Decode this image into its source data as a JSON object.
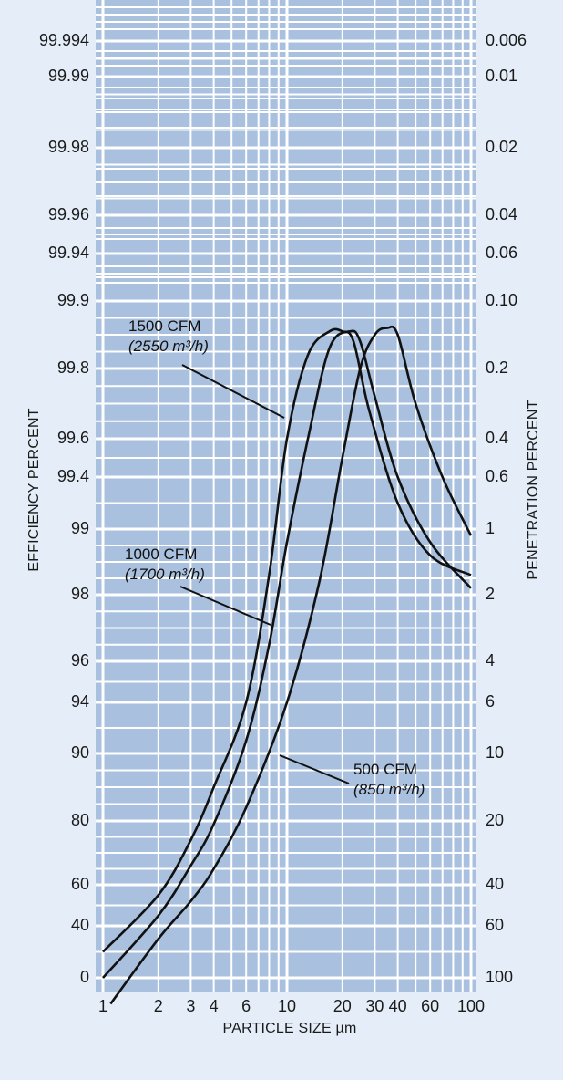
{
  "chart_data": {
    "type": "line",
    "title": "",
    "xlabel": "PARTICLE SIZE µm",
    "ylabel_left": "EFFICIENCY PERCENT",
    "ylabel_right": "PENETRATION PERCENT",
    "x_scale": "log",
    "xlim": [
      1,
      100
    ],
    "x_ticks": [
      1,
      2,
      3,
      4,
      6,
      10,
      20,
      30,
      40,
      60,
      100
    ],
    "x_tick_labels": [
      "1",
      "2",
      "3",
      "4",
      "6",
      "10",
      "20",
      "30",
      "40",
      "60",
      "100"
    ],
    "left_ticks": [
      "99.994",
      "99.99",
      "99.98",
      "99.96",
      "99.94",
      "99.9",
      "99.8",
      "99.6",
      "99.4",
      "99",
      "98",
      "96",
      "94",
      "90",
      "80",
      "60",
      "40",
      "0"
    ],
    "right_ticks": [
      "0.006",
      "0.01",
      "0.02",
      "0.04",
      "0.06",
      "0.10",
      "0.2",
      "0.4",
      "0.6",
      "1",
      "2",
      "4",
      "6",
      "10",
      "20",
      "40",
      "60",
      "100"
    ],
    "grid": true,
    "background_color": "#a9c0de",
    "grid_color": "#ffffff",
    "line_color": "#111111",
    "series": [
      {
        "name": "1500 CFM",
        "name_metric": "(2550 m³/h)",
        "points": [
          [
            1,
            20
          ],
          [
            2,
            55
          ],
          [
            3,
            74
          ],
          [
            4,
            85
          ],
          [
            6,
            94
          ],
          [
            8,
            98.3
          ],
          [
            10,
            99.6
          ],
          [
            13,
            99.82
          ],
          [
            17,
            99.855
          ],
          [
            20,
            99.855
          ],
          [
            23,
            99.84
          ],
          [
            28,
            99.68
          ],
          [
            40,
            99.2
          ],
          [
            60,
            98.6
          ],
          [
            100,
            98.3
          ]
        ]
      },
      {
        "name": "1000 CFM",
        "name_metric": "(1700 m³/h)",
        "points": [
          [
            1,
            0
          ],
          [
            2,
            45
          ],
          [
            3,
            66
          ],
          [
            4,
            79
          ],
          [
            6,
            91
          ],
          [
            8,
            96.5
          ],
          [
            10,
            98.8
          ],
          [
            13,
            99.6
          ],
          [
            17,
            99.83
          ],
          [
            22,
            99.855
          ],
          [
            25,
            99.84
          ],
          [
            30,
            99.72
          ],
          [
            40,
            99.4
          ],
          [
            60,
            98.8
          ],
          [
            100,
            98.1
          ]
        ]
      },
      {
        "name": "500 CFM",
        "name_metric": "(850 m³/h)",
        "points": [
          [
            1.1,
            -20
          ],
          [
            2,
            30
          ],
          [
            3,
            52
          ],
          [
            4,
            65
          ],
          [
            6,
            82
          ],
          [
            10,
            94
          ],
          [
            15,
            98.2
          ],
          [
            20,
            99.5
          ],
          [
            25,
            99.8
          ],
          [
            30,
            99.85
          ],
          [
            35,
            99.86
          ],
          [
            40,
            99.85
          ],
          [
            50,
            99.7
          ],
          [
            70,
            99.4
          ],
          [
            100,
            98.9
          ]
        ]
      }
    ]
  }
}
